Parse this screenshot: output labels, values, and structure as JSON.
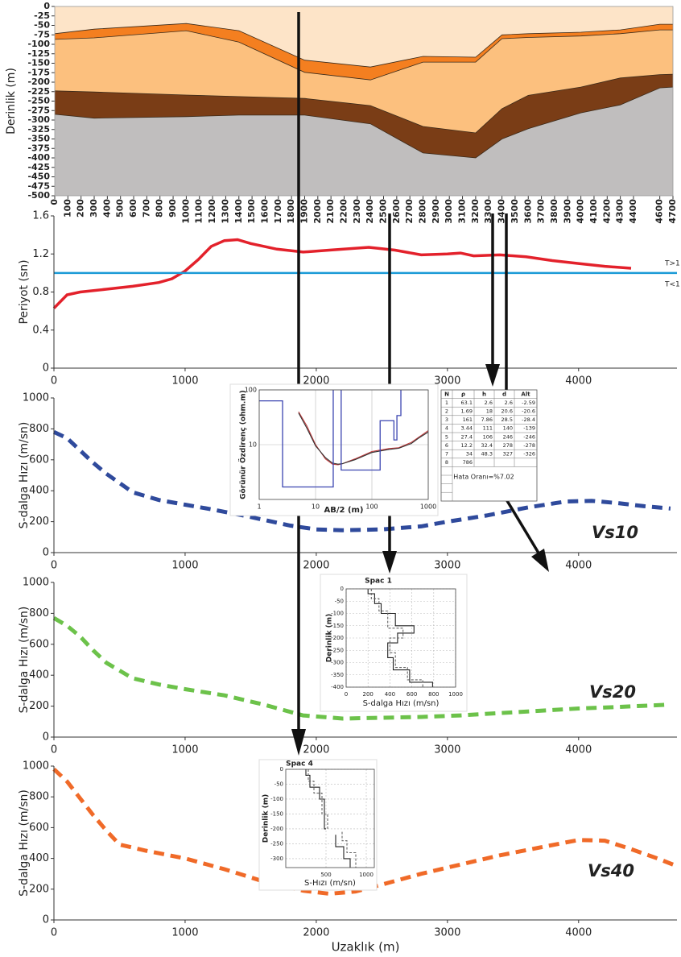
{
  "chart_data": [
    {
      "type": "area",
      "ylabel": "Derinlik (m)",
      "x": [
        0,
        300,
        1000,
        1400,
        1900,
        2400,
        2800,
        3200,
        3400,
        3600,
        4000,
        4300,
        4600,
        4700
      ],
      "series": [
        {
          "color": "#f47f20",
          "values": [
            -72,
            -60,
            -45,
            -64,
            -142,
            -160,
            -132,
            -134,
            -75,
            -72,
            -68,
            -62,
            -47,
            -47
          ]
        },
        {
          "color": "#fcc07e",
          "values": [
            -87,
            -83,
            -64,
            -94,
            -174,
            -194,
            -147,
            -147,
            -85,
            -82,
            -78,
            -72,
            -62,
            -62
          ]
        },
        {
          "color": "#7a3d16",
          "values": [
            -223,
            -226,
            -234,
            -238,
            -243,
            -262,
            -317,
            -334,
            -270,
            -235,
            -213,
            -189,
            -180,
            -179
          ]
        },
        {
          "color": "#c0bebe",
          "values": [
            -285,
            -295,
            -291,
            -287,
            -287,
            -310,
            -387,
            -400,
            -350,
            -323,
            -281,
            -260,
            -215,
            -213
          ]
        }
      ],
      "plot_bg": "#fde4c8",
      "edge_color": "#3a2a1a",
      "xlim": [
        0,
        4700
      ],
      "ylim": [
        -500,
        0
      ],
      "xticks": [
        0,
        100,
        200,
        300,
        400,
        500,
        600,
        700,
        800,
        900,
        1000,
        1100,
        1200,
        1300,
        1400,
        1500,
        1600,
        1700,
        1800,
        1900,
        2000,
        2100,
        2200,
        2300,
        2400,
        2500,
        2600,
        2700,
        2800,
        2900,
        3000,
        3100,
        3200,
        3300,
        3400,
        3500,
        3600,
        3700,
        3800,
        3900,
        4000,
        4100,
        4200,
        4300,
        4400,
        4600,
        4700
      ],
      "yticks": [
        0,
        -25,
        -50,
        -75,
        -100,
        -125,
        -150,
        -175,
        -200,
        -225,
        -250,
        -275,
        -300,
        -325,
        -350,
        -375,
        -400,
        -425,
        -450,
        -475,
        -500
      ]
    },
    {
      "type": "line",
      "ylabel": "Periyot (sn)",
      "series": [
        {
          "color": "#e3212b",
          "x": [
            0,
            100,
            200,
            400,
            600,
            800,
            900,
            1000,
            1100,
            1200,
            1300,
            1400,
            1500,
            1700,
            1900,
            2100,
            2400,
            2600,
            2800,
            3000,
            3100,
            3200,
            3400,
            3600,
            3800,
            4000,
            4200,
            4400
          ],
          "values": [
            0.63,
            0.77,
            0.8,
            0.83,
            0.86,
            0.9,
            0.94,
            1.02,
            1.14,
            1.28,
            1.34,
            1.35,
            1.31,
            1.25,
            1.22,
            1.24,
            1.27,
            1.24,
            1.19,
            1.2,
            1.21,
            1.18,
            1.19,
            1.17,
            1.13,
            1.1,
            1.07,
            1.05
          ]
        },
        {
          "color": "#1b9ad6",
          "x": [
            0,
            4750
          ],
          "values": [
            1,
            1
          ]
        }
      ],
      "annotations": [
        {
          "text": "T>1",
          "color": "#e3212b"
        },
        {
          "text": "T<1",
          "color": "#1b9ad6"
        }
      ],
      "xlim": [
        0,
        4750
      ],
      "ylim": [
        0,
        1.6
      ],
      "xticks": [
        0,
        1000,
        2000,
        3000,
        4000
      ],
      "yticks": [
        0,
        0.4,
        0.8,
        1.2,
        1.6
      ]
    },
    {
      "type": "line",
      "ylabel": "S-dalga Hızı (m/sn)",
      "line_style": "dashed",
      "series": [
        {
          "name": "Vs10",
          "color": "#2f4a9c",
          "x": [
            0,
            100,
            200,
            300,
            400,
            600,
            800,
            1000,
            1200,
            1500,
            1800,
            2000,
            2200,
            2500,
            2800,
            3000,
            3300,
            3600,
            3900,
            4100,
            4300,
            4500,
            4700
          ],
          "values": [
            780,
            740,
            660,
            580,
            510,
            390,
            340,
            310,
            280,
            230,
            175,
            150,
            145,
            150,
            170,
            200,
            240,
            290,
            330,
            335,
            320,
            300,
            285
          ]
        }
      ],
      "xlim": [
        0,
        4750
      ],
      "ylim": [
        0,
        1000
      ],
      "xticks": [
        0,
        1000,
        2000,
        3000,
        4000
      ],
      "yticks": [
        0,
        200,
        400,
        600,
        800,
        1000
      ]
    },
    {
      "type": "line",
      "ylabel": "S-dalga Hızı (m/sn)",
      "line_style": "dashed",
      "series": [
        {
          "name": "Vs20",
          "color": "#6cc24a",
          "x": [
            0,
            100,
            200,
            300,
            400,
            600,
            800,
            1000,
            1300,
            1600,
            1900,
            2200,
            2500,
            2800,
            3100,
            3400,
            3700,
            4000,
            4300,
            4700
          ],
          "values": [
            770,
            720,
            650,
            560,
            480,
            380,
            340,
            310,
            270,
            210,
            140,
            120,
            125,
            130,
            140,
            155,
            170,
            185,
            195,
            210
          ]
        }
      ],
      "xlim": [
        0,
        4750
      ],
      "ylim": [
        0,
        1000
      ],
      "xticks": [
        0,
        1000,
        2000,
        3000,
        4000
      ],
      "yticks": [
        0,
        200,
        400,
        600,
        800,
        1000
      ]
    },
    {
      "type": "line",
      "ylabel": "S-dalga Hızı (m/sn)",
      "xlabel": "Uzaklık (m)",
      "line_style": "dashed",
      "series": [
        {
          "name": "Vs40",
          "color": "#f06a28",
          "x": [
            0,
            100,
            200,
            300,
            400,
            500,
            700,
            1000,
            1300,
            1600,
            1900,
            2100,
            2300,
            2500,
            2800,
            3100,
            3400,
            3700,
            4000,
            4200,
            4400,
            4600,
            4750
          ],
          "values": [
            980,
            900,
            790,
            680,
            580,
            490,
            450,
            400,
            330,
            250,
            190,
            170,
            185,
            230,
            300,
            360,
            420,
            470,
            520,
            515,
            460,
            400,
            350
          ]
        }
      ],
      "xlim": [
        0,
        4750
      ],
      "ylim": [
        0,
        1000
      ],
      "xticks": [
        0,
        1000,
        2000,
        3000,
        4000
      ],
      "yticks": [
        0,
        200,
        400,
        600,
        800,
        1000
      ]
    },
    {
      "type": "line",
      "log_x": true,
      "log_y": true,
      "grid": true,
      "ylabel": "Görünür Özdirenç (ohm.m)",
      "xlabel": "AB/2 (m)",
      "series": [
        {
          "color": "#c0393b",
          "x": [
            5,
            7,
            10,
            15,
            20,
            25,
            30,
            50,
            100,
            200,
            300,
            500,
            700,
            1000
          ],
          "values": [
            40,
            22,
            10,
            5.5,
            4.4,
            4.3,
            4.5,
            5.5,
            7.5,
            8.5,
            8.8,
            11,
            14,
            18
          ]
        },
        {
          "color": "#333333",
          "x": [
            5,
            7,
            10,
            15,
            20,
            25,
            30,
            50,
            100,
            200,
            300,
            500,
            700,
            1000
          ],
          "values": [
            38,
            20,
            9.5,
            5.8,
            4.6,
            4.4,
            4.5,
            5.3,
            7.2,
            8.2,
            8.6,
            10.5,
            13.5,
            17
          ]
        }
      ],
      "model_color": "#3a44b0",
      "xlim": [
        1,
        1000
      ],
      "ylim": [
        1,
        100
      ],
      "xticks": [
        1,
        10,
        100,
        1000
      ],
      "yticks": [
        10,
        100
      ],
      "table": {
        "columns": [
          "N",
          "ρ",
          "h",
          "d",
          "Alt"
        ],
        "rows": [
          [
            1,
            63.1,
            2.6,
            2.6,
            -2.59
          ],
          [
            2,
            1.69,
            18,
            20.6,
            -20.6
          ],
          [
            3,
            161,
            7.86,
            28.5,
            -28.4
          ],
          [
            4,
            3.44,
            111,
            140,
            -139
          ],
          [
            5,
            27.4,
            106,
            246,
            -246
          ],
          [
            6,
            12.2,
            32.4,
            278,
            -278
          ],
          [
            7,
            34,
            48.3,
            327,
            -326
          ],
          [
            8,
            786
          ]
        ],
        "error_text": "Hata Oranı=%7.02"
      }
    },
    {
      "type": "line",
      "title": "Spac 1",
      "grid": true,
      "ylabel": "Derinlik (m)",
      "xlabel": "S-dalga Hızı (m/sn)",
      "series": [
        {
          "color": "#222222",
          "x": [
            200,
            200,
            260,
            260,
            320,
            320,
            450,
            450,
            620,
            620,
            470,
            470,
            380,
            380,
            430,
            430,
            580,
            580,
            790,
            790
          ],
          "values": [
            0,
            -20,
            -20,
            -60,
            -60,
            -100,
            -100,
            -150,
            -150,
            -180,
            -180,
            -220,
            -220,
            -280,
            -280,
            -330,
            -330,
            -380,
            -380,
            -400
          ]
        },
        {
          "color": "#666666",
          "line_style": "dashed",
          "x": [
            230,
            230,
            300,
            300,
            380,
            380,
            520,
            520,
            400,
            400,
            450,
            450,
            560,
            560,
            700,
            700
          ],
          "values": [
            0,
            -40,
            -40,
            -90,
            -90,
            -160,
            -160,
            -200,
            -200,
            -260,
            -260,
            -320,
            -320,
            -370,
            -370,
            -400
          ]
        }
      ],
      "xlim": [
        0,
        1000
      ],
      "ylim": [
        -400,
        0
      ],
      "xticks": [
        0,
        200,
        400,
        600,
        800,
        1000
      ],
      "yticks": [
        0,
        -50,
        -100,
        -150,
        -200,
        -250,
        -300,
        -350,
        -400
      ]
    },
    {
      "type": "line",
      "title": "Spac 4",
      "grid": true,
      "ylabel": "Derinlik (m)",
      "xlabel": "S-Hızı (m/sn)",
      "series": [
        {
          "color": "#222222",
          "x": [
            250,
            250,
            300,
            300,
            420,
            420,
            480,
            480,
            500,
            null,
            620,
            620,
            720,
            720,
            800,
            800
          ],
          "values": [
            0,
            -20,
            -20,
            -60,
            -60,
            -100,
            -100,
            -200,
            -200,
            null,
            -220,
            -260,
            -260,
            -300,
            -300,
            -330
          ]
        },
        {
          "color": "#666666",
          "line_style": "dashed",
          "x": [
            280,
            280,
            350,
            350,
            450,
            450,
            520,
            520,
            null,
            700,
            700,
            760,
            760,
            870,
            870
          ],
          "values": [
            0,
            -40,
            -40,
            -80,
            -80,
            -150,
            -150,
            -200,
            null,
            -210,
            -240,
            -240,
            -280,
            -280,
            -330
          ]
        }
      ],
      "xlim": [
        0,
        1100
      ],
      "ylim": [
        -330,
        0
      ],
      "xticks": [
        500,
        1000
      ],
      "yticks": [
        0,
        -50,
        -100,
        -150,
        -200,
        -250,
        -300
      ]
    }
  ]
}
